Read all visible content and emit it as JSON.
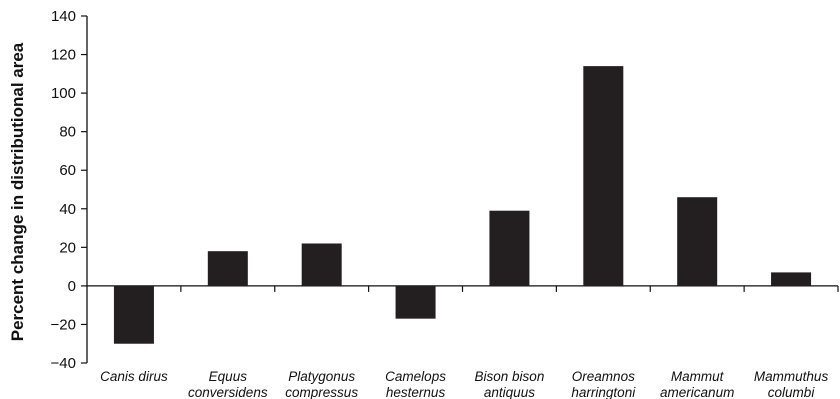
{
  "chart_data": {
    "type": "bar",
    "title": "",
    "xlabel": "",
    "ylabel": "Percent change in distributional area",
    "ylim": [
      -40,
      140
    ],
    "yticks": [
      -40,
      -20,
      0,
      20,
      40,
      60,
      80,
      100,
      120,
      140
    ],
    "ytick_labels": [
      "−40",
      "−20",
      "0",
      "20",
      "40",
      "60",
      "80",
      "100",
      "120",
      "140"
    ],
    "grid": false,
    "categories": [
      [
        "Canis dirus"
      ],
      [
        "Equus",
        "conversidens"
      ],
      [
        "Platygonus",
        "compressus"
      ],
      [
        "Camelops",
        "hesternus"
      ],
      [
        "Bison bison",
        "antiquus"
      ],
      [
        "Oreamnos",
        "harringtoni"
      ],
      [
        "Mammut",
        "americanum"
      ],
      [
        "Mammuthus",
        "columbi"
      ]
    ],
    "values": [
      -30,
      18,
      22,
      -17,
      39,
      114,
      46,
      7
    ],
    "bar_color": "#231f20",
    "axis_color": "#111111"
  }
}
